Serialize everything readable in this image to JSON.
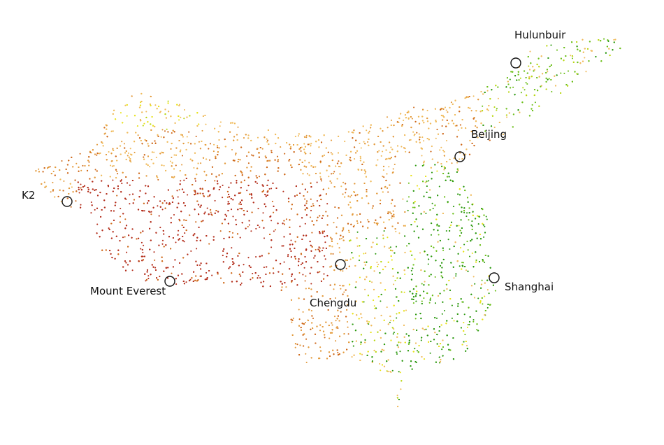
{
  "map": {
    "palette": {
      "lowland_green": "#2e9a12",
      "mid_green": "#6cbf1a",
      "yellow_green": "#b9d714",
      "yellow": "#e8e21a",
      "light_orange": "#f0bb5c",
      "orange": "#e39a3c",
      "dark_orange": "#cf6a1c",
      "red_brown": "#b4301e",
      "marker_stroke": "#111111"
    },
    "places": [
      {
        "name": "Hulunbuir",
        "marker_icon": "circle-marker-icon"
      },
      {
        "name": "Beijing",
        "marker_icon": "circle-marker-icon"
      },
      {
        "name": "K2",
        "marker_icon": "circle-marker-icon"
      },
      {
        "name": "Mount Everest",
        "marker_icon": "circle-marker-icon"
      },
      {
        "name": "Chengdu",
        "marker_icon": "circle-marker-icon"
      },
      {
        "name": "Shanghai",
        "marker_icon": "circle-marker-icon"
      }
    ]
  }
}
